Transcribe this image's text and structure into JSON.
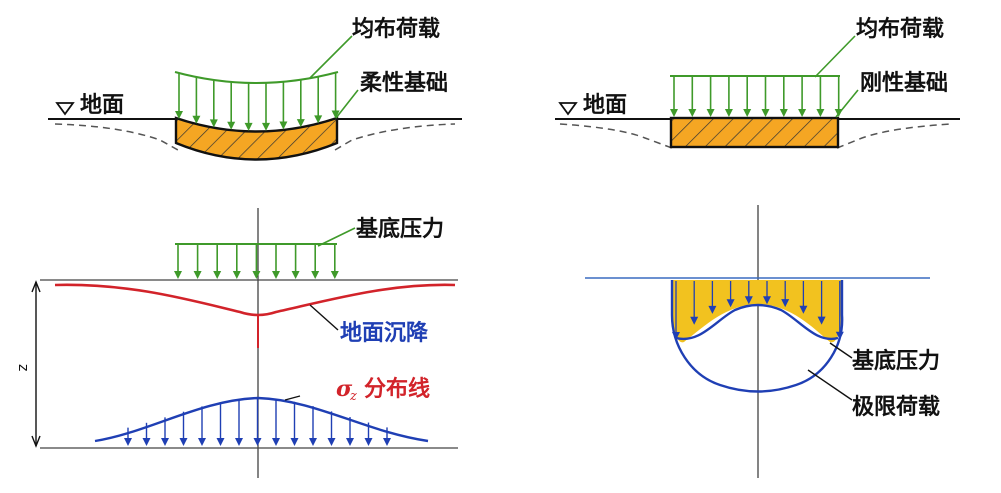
{
  "labels": {
    "uniform_load_left": "均布荷载",
    "flexible_foundation": "柔性基础",
    "ground_left": "地面",
    "uniform_load_right": "均布荷载",
    "rigid_foundation": "刚性基础",
    "ground_right": "地面",
    "base_pressure_left": "基底压力",
    "ground_settlement": "地面沉降",
    "sigma_symbol": "σ",
    "sigma_subscript": "z",
    "stress_distribution": "分布线",
    "depth_axis": "z",
    "base_pressure_right": "基底压力",
    "ultimate_load": "极限荷载"
  },
  "colors": {
    "foundation_fill": "#f5a623",
    "pressure_fill": "#f2c21f",
    "arrow_green": "#3f9a2a",
    "settlement_red": "#d2232a",
    "stress_blue": "#1f3fb4",
    "line_black": "#111111"
  }
}
